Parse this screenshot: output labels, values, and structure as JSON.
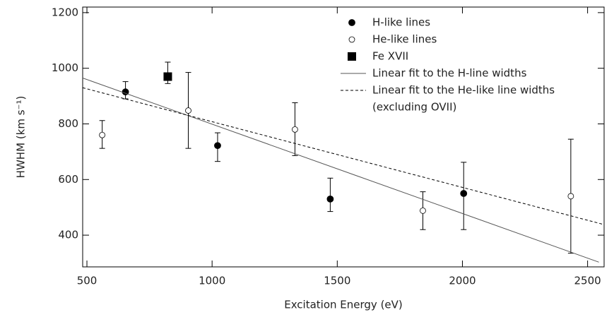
{
  "chart_data": {
    "type": "scatter",
    "xlabel": "Excitation Energy (eV)",
    "ylabel": "HWHM (km s⁻¹)",
    "xlim": [
      483,
      2566
    ],
    "ylim": [
      286,
      1220
    ],
    "xticks": [
      500,
      1000,
      1500,
      2000,
      2500
    ],
    "yticks": [
      400,
      600,
      800,
      1000,
      1200
    ],
    "legend": "upper-right",
    "annotation": "(excluding OVII)",
    "series": [
      {
        "name": "H-like lines",
        "kind": "points",
        "marker": "filled-circle",
        "color": "#000000",
        "x": [
          654,
          1022,
          1472,
          2005
        ],
        "values": [
          915,
          722,
          530,
          550
        ],
        "yerr_minus": [
          25,
          57,
          45,
          130
        ],
        "yerr_plus": [
          37,
          46,
          75,
          112
        ]
      },
      {
        "name": "He-like lines",
        "kind": "points",
        "marker": "open-circle",
        "color": "#000000",
        "x": [
          561,
          905,
          1331,
          1842,
          2433
        ],
        "values": [
          760,
          848,
          780,
          488,
          540
        ],
        "yerr_minus": [
          48,
          136,
          94,
          68,
          205
        ],
        "yerr_plus": [
          52,
          137,
          96,
          68,
          205
        ]
      },
      {
        "name": "Fe XVII",
        "kind": "points",
        "marker": "square",
        "color": "#000000",
        "x": [
          823
        ],
        "values": [
          970
        ],
        "yerr_minus": [
          25
        ],
        "yerr_plus": [
          52
        ]
      },
      {
        "name": "Linear fit to the H-line widths",
        "kind": "line",
        "linestyle": "solid",
        "color": "#555555",
        "x": [
          483,
          2545
        ],
        "values": [
          965,
          303
        ]
      },
      {
        "name": "Linear fit to the He-like line widths",
        "kind": "line",
        "linestyle": "dashed",
        "color": "#000000",
        "x": [
          483,
          2566
        ],
        "values": [
          930,
          438
        ]
      }
    ]
  }
}
